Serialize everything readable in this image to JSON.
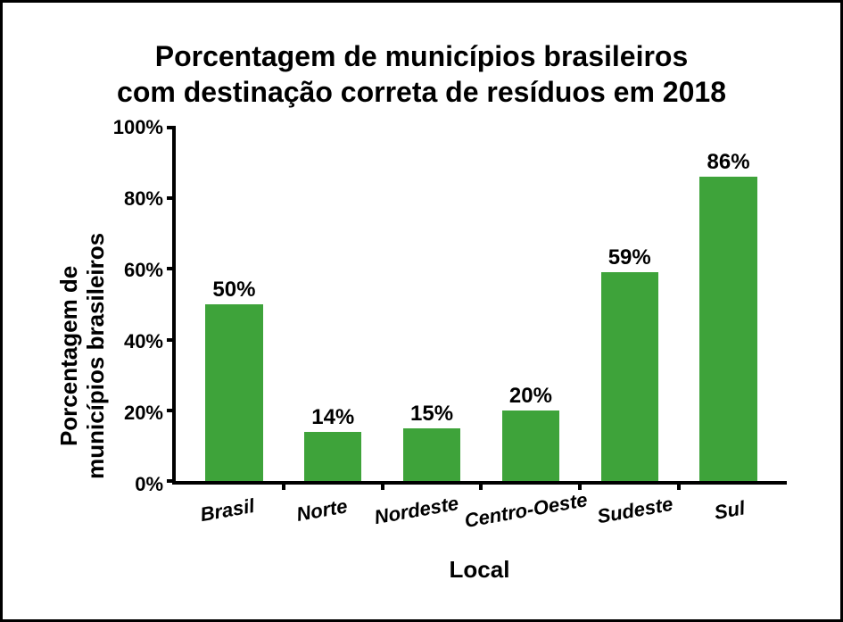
{
  "chart": {
    "type": "bar",
    "title_line1": "Porcentagem de municípios brasileiros",
    "title_line2": "com destinação correta de resíduos em 2018",
    "title_fontsize": 32,
    "xlabel": "Local",
    "ylabel_line1": "Porcentagem de",
    "ylabel_line2": "municípios brasileiros",
    "axis_label_fontsize": 26,
    "tick_fontsize": 22,
    "value_label_fontsize": 24,
    "categories": [
      "Brasil",
      "Norte",
      "Nordeste",
      "Centro-Oeste",
      "Sudeste",
      "Sul"
    ],
    "values": [
      50,
      14,
      15,
      20,
      59,
      86
    ],
    "value_labels": [
      "50%",
      "14%",
      "15%",
      "20%",
      "59%",
      "86%"
    ],
    "bar_color": "#3ea33a",
    "background_color": "#ffffff",
    "border_color": "#000000",
    "axis_color": "#000000",
    "text_color": "#000000",
    "ylim": [
      0,
      100
    ],
    "ytick_step": 20,
    "yticks": [
      0,
      20,
      40,
      60,
      80,
      100
    ],
    "ytick_labels": [
      "0%",
      "20%",
      "40%",
      "60%",
      "80%",
      "100%"
    ],
    "bar_width": 0.58,
    "grid": false,
    "x_tick_rotation_deg": -10,
    "x_tick_font_style": "italic"
  }
}
